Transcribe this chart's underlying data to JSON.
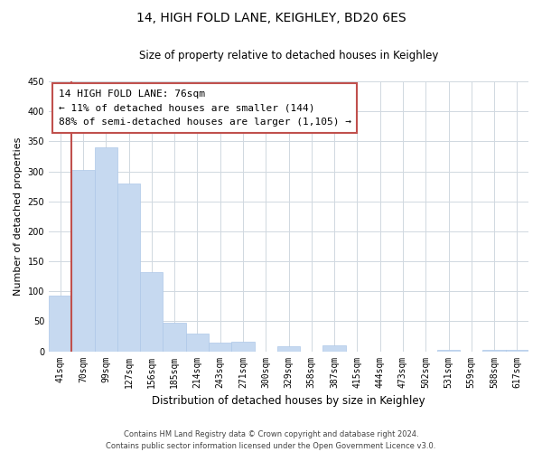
{
  "title": "14, HIGH FOLD LANE, KEIGHLEY, BD20 6ES",
  "subtitle": "Size of property relative to detached houses in Keighley",
  "xlabel": "Distribution of detached houses by size in Keighley",
  "ylabel": "Number of detached properties",
  "bar_labels": [
    "41sqm",
    "70sqm",
    "99sqm",
    "127sqm",
    "156sqm",
    "185sqm",
    "214sqm",
    "243sqm",
    "271sqm",
    "300sqm",
    "329sqm",
    "358sqm",
    "387sqm",
    "415sqm",
    "444sqm",
    "473sqm",
    "502sqm",
    "531sqm",
    "559sqm",
    "588sqm",
    "617sqm"
  ],
  "bar_values": [
    93,
    302,
    340,
    279,
    132,
    47,
    30,
    14,
    16,
    0,
    8,
    0,
    10,
    0,
    0,
    0,
    0,
    2,
    0,
    2,
    2
  ],
  "bar_color_normal": "#c6d9f0",
  "bar_edge_color": "#aec8e8",
  "annotation_title": "14 HIGH FOLD LANE: 76sqm",
  "annotation_line1": "← 11% of detached houses are smaller (144)",
  "annotation_line2": "88% of semi-detached houses are larger (1,105) →",
  "annotation_box_color": "#ffffff",
  "annotation_box_edge": "#c0504d",
  "red_line_x": 0.5,
  "ylim": [
    0,
    450
  ],
  "yticks": [
    0,
    50,
    100,
    150,
    200,
    250,
    300,
    350,
    400,
    450
  ],
  "footer_line1": "Contains HM Land Registry data © Crown copyright and database right 2024.",
  "footer_line2": "Contains public sector information licensed under the Open Government Licence v3.0.",
  "background_color": "#ffffff",
  "grid_color": "#d0d8e0",
  "title_fontsize": 10,
  "subtitle_fontsize": 8.5,
  "tick_fontsize": 7,
  "ylabel_fontsize": 8,
  "xlabel_fontsize": 8.5,
  "footer_fontsize": 6,
  "ann_fontsize": 8
}
